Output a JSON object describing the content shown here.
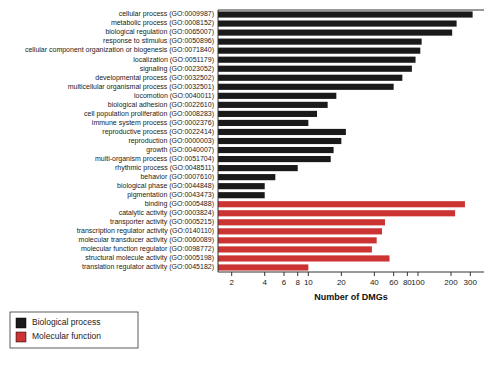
{
  "chart_data": {
    "type": "bar",
    "orientation": "horizontal",
    "log": "x",
    "x_label": "Number of DMGs",
    "categories": [
      "cellular process (GO:0009987)",
      "metabolic process (GO:0008152)",
      "biological regulation (GO:0065007)",
      "response to stimulus (GO:0050896)",
      "cellular component organization or biogenesis (GO:0071840)",
      "localization (GO:0051179)",
      "signaling (GO:0023052)",
      "developmental process (GO:0032502)",
      "multicellular organismal process (GO:0032501)",
      "locomotion (GO:0040011)",
      "biological adhesion (GO:0022610)",
      "cell population proliferation (GO:0008283)",
      "immune system process (GO:0002376)",
      "reproductive process (GO:0022414)",
      "reproduction (GO:0000003)",
      "growth (GO:0040007)",
      "multi-organism process (GO:0051704)",
      "rhythmic process (GO:0048511)",
      "behavior (GO:0007610)",
      "biological phase (GO:0044848)",
      "pigmentation (GO:0043473)",
      "binding (GO:0005488)",
      "catalytic activity (GO:0003824)",
      "transporter activity (GO:0005215)",
      "transcription regulator activity (GO:0140110)",
      "molecular transducer activity (GO:0060089)",
      "molecular function regulator (GO:0098772)",
      "structural molecule activity (GO:0005198)",
      "translation regulator activity (GO:0045182)"
    ],
    "series": [
      {
        "name": "Biological process",
        "color": "#1a1a1a",
        "values": [
          315,
          225,
          205,
          108,
          105,
          95,
          88,
          72,
          60,
          18,
          15,
          12,
          10,
          22,
          20,
          17,
          16,
          8,
          5,
          4,
          4,
          null,
          null,
          null,
          null,
          null,
          null,
          null,
          null
        ]
      },
      {
        "name": "Molecular function",
        "color": "#cc3333",
        "values": [
          null,
          null,
          null,
          null,
          null,
          null,
          null,
          null,
          null,
          null,
          null,
          null,
          null,
          null,
          null,
          null,
          null,
          null,
          null,
          null,
          null,
          268,
          218,
          50,
          47,
          42,
          38,
          55,
          10
        ]
      }
    ],
    "xlim": [
      1.5,
      400
    ],
    "xticks": [
      2,
      4,
      6,
      8,
      10,
      20,
      40,
      60,
      80,
      100,
      200,
      300
    ],
    "grid": false,
    "legend": "lower left"
  }
}
